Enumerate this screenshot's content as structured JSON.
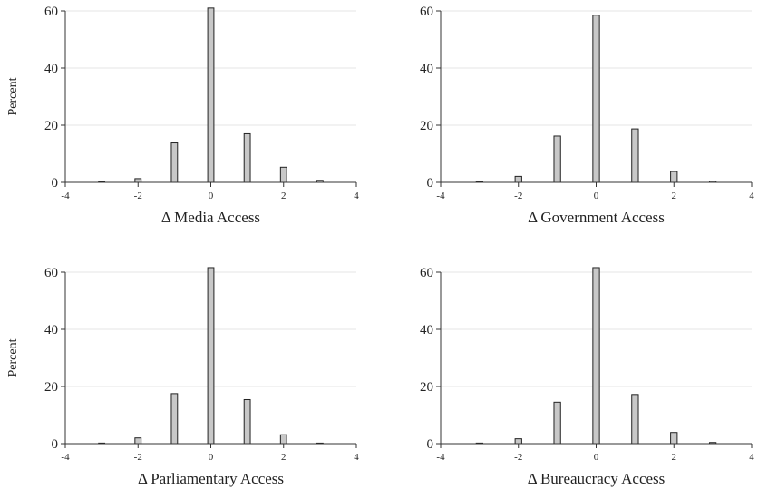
{
  "chart_data": [
    {
      "type": "bar",
      "xlabel": "Δ Media Access",
      "ylabel": "Percent",
      "xlim": [
        -4,
        4
      ],
      "ylim": [
        0,
        60
      ],
      "xticks": [
        "-4",
        "-2",
        "0",
        "2",
        "4"
      ],
      "yticks": [
        "0",
        "20",
        "40",
        "60"
      ],
      "grid": true,
      "x": [
        -3,
        -2,
        -1,
        0,
        1,
        2,
        3
      ],
      "values": [
        0.2,
        1.3,
        13.8,
        61.0,
        17.0,
        5.3,
        0.7
      ]
    },
    {
      "type": "bar",
      "xlabel": "Δ Government Access",
      "ylabel": "",
      "xlim": [
        -4,
        4
      ],
      "ylim": [
        0,
        60
      ],
      "xticks": [
        "-4",
        "-2",
        "0",
        "2",
        "4"
      ],
      "yticks": [
        "0",
        "20",
        "40",
        "60"
      ],
      "grid": true,
      "x": [
        -3,
        -2,
        -1,
        0,
        1,
        2,
        3
      ],
      "values": [
        0.2,
        2.1,
        16.2,
        58.5,
        18.7,
        3.8,
        0.4
      ]
    },
    {
      "type": "bar",
      "xlabel": "Δ Parliamentary Access",
      "ylabel": "Percent",
      "xlim": [
        -4,
        4
      ],
      "ylim": [
        0,
        60
      ],
      "xticks": [
        "-4",
        "-2",
        "0",
        "2",
        "4"
      ],
      "yticks": [
        "0",
        "20",
        "40",
        "60"
      ],
      "grid": true,
      "x": [
        -3,
        -2,
        -1,
        0,
        1,
        2,
        3
      ],
      "values": [
        0.2,
        2.0,
        17.5,
        61.6,
        15.4,
        3.1,
        0.0
      ]
    },
    {
      "type": "bar",
      "xlabel": "Δ Bureaucracy Access",
      "ylabel": "",
      "xlim": [
        -4,
        4
      ],
      "ylim": [
        0,
        60
      ],
      "xticks": [
        "-4",
        "-2",
        "0",
        "2",
        "4"
      ],
      "yticks": [
        "0",
        "20",
        "40",
        "60"
      ],
      "grid": true,
      "x": [
        -3,
        -2,
        -1,
        0,
        1,
        2,
        3
      ],
      "values": [
        0.2,
        1.7,
        14.5,
        61.6,
        17.2,
        3.9,
        0.4
      ]
    }
  ],
  "colors": {
    "bar_fill": "#c8c8c8",
    "bar_stroke": "#222222",
    "axis": "#333333",
    "grid": "#e6e6e6"
  }
}
